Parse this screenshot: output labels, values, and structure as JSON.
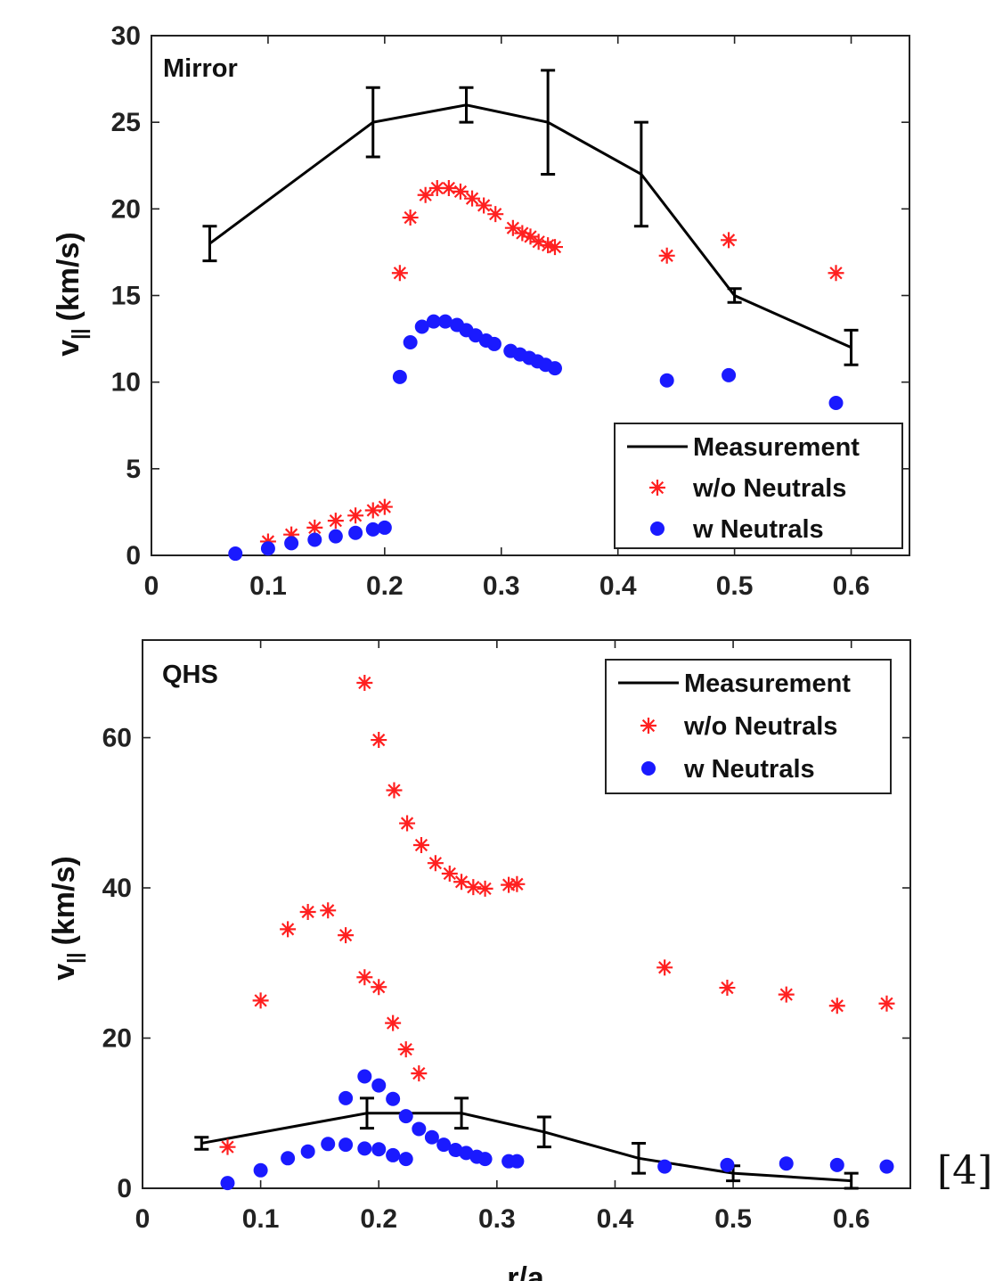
{
  "reference_tag": "[4]",
  "chart_data": [
    {
      "type": "scatter",
      "panel_label": "Mirror",
      "xlim": [
        0,
        0.65
      ],
      "ylim": [
        0,
        30
      ],
      "xticks": [
        0,
        0.1,
        0.2,
        0.3,
        0.4,
        0.5,
        0.6
      ],
      "xtick_labels": [
        "0",
        "0.1",
        "0.2",
        "0.3",
        "0.4",
        "0.5",
        "0.6"
      ],
      "yticks": [
        0,
        5,
        10,
        15,
        20,
        25,
        30
      ],
      "ytick_labels": [
        "0",
        "5",
        "10",
        "15",
        "20",
        "25",
        "30"
      ],
      "ylabel": "v",
      "ylabel_sub": "||",
      "ylabel_unit": "(km/s)",
      "xlabel": "",
      "legend_position": "bottom-right",
      "legend": [
        "Measurement",
        "w/o Neutrals",
        "w Neutrals"
      ],
      "series": [
        {
          "name": "Measurement",
          "style": "line-errorbar",
          "color": "#000000",
          "x": [
            0.05,
            0.19,
            0.27,
            0.34,
            0.42,
            0.5,
            0.6
          ],
          "y": [
            18,
            25,
            26,
            25,
            22,
            15,
            12
          ],
          "err": [
            1,
            2,
            1,
            3,
            3,
            0.4,
            1
          ]
        },
        {
          "name": "w/o Neutrals",
          "style": "star",
          "color": "#ff2020",
          "x": [
            0.1,
            0.12,
            0.14,
            0.158,
            0.175,
            0.19,
            0.2,
            0.213,
            0.222,
            0.235,
            0.245,
            0.255,
            0.265,
            0.275,
            0.285,
            0.295,
            0.31,
            0.318,
            0.325,
            0.332,
            0.34,
            0.346,
            0.442,
            0.495,
            0.587
          ],
          "y": [
            0.8,
            1.2,
            1.6,
            2.0,
            2.3,
            2.6,
            2.8,
            16.3,
            19.5,
            20.8,
            21.2,
            21.2,
            21.0,
            20.6,
            20.2,
            19.7,
            18.9,
            18.6,
            18.4,
            18.1,
            17.9,
            17.8,
            17.3,
            18.2,
            16.3
          ]
        },
        {
          "name": "w Neutrals",
          "style": "dot",
          "color": "#1a1aff",
          "x": [
            0.072,
            0.1,
            0.12,
            0.14,
            0.158,
            0.175,
            0.19,
            0.2,
            0.213,
            0.222,
            0.232,
            0.242,
            0.252,
            0.262,
            0.27,
            0.278,
            0.287,
            0.294,
            0.308,
            0.316,
            0.324,
            0.331,
            0.338,
            0.346,
            0.442,
            0.495,
            0.587
          ],
          "y": [
            0.1,
            0.4,
            0.7,
            0.9,
            1.1,
            1.3,
            1.5,
            1.6,
            10.3,
            12.3,
            13.2,
            13.5,
            13.5,
            13.3,
            13.0,
            12.7,
            12.4,
            12.2,
            11.8,
            11.6,
            11.4,
            11.2,
            11.0,
            10.8,
            10.1,
            10.4,
            8.8
          ]
        }
      ]
    },
    {
      "type": "scatter",
      "panel_label": "QHS",
      "xlim": [
        0,
        0.65
      ],
      "ylim": [
        0,
        73
      ],
      "xticks": [
        0,
        0.1,
        0.2,
        0.3,
        0.4,
        0.5,
        0.6
      ],
      "xtick_labels": [
        "0",
        "0.1",
        "0.2",
        "0.3",
        "0.4",
        "0.5",
        "0.6"
      ],
      "yticks": [
        0,
        20,
        40,
        60
      ],
      "ytick_labels": [
        "0",
        "20",
        "40",
        "60"
      ],
      "ylabel": "v",
      "ylabel_sub": "||",
      "ylabel_unit": "(km/s)",
      "xlabel": "r/a",
      "legend_position": "top-right",
      "legend": [
        "Measurement",
        "w/o Neutrals",
        "w Neutrals"
      ],
      "series": [
        {
          "name": "Measurement",
          "style": "line-errorbar",
          "color": "#000000",
          "x": [
            0.05,
            0.19,
            0.27,
            0.34,
            0.42,
            0.5,
            0.6
          ],
          "y": [
            6,
            10,
            10,
            7.5,
            4,
            2,
            1
          ],
          "err": [
            0.8,
            2,
            2,
            2,
            2,
            1,
            1
          ]
        },
        {
          "name": "w/o Neutrals",
          "style": "star",
          "color": "#ff2020",
          "x": [
            0.072,
            0.1,
            0.123,
            0.14,
            0.157,
            0.172,
            0.188,
            0.2,
            0.212,
            0.223,
            0.234,
            0.188,
            0.2,
            0.213,
            0.224,
            0.236,
            0.248,
            0.26,
            0.27,
            0.28,
            0.29,
            0.31,
            0.317,
            0.442,
            0.495,
            0.545,
            0.588,
            0.63
          ],
          "y": [
            5.5,
            25,
            34.5,
            36.8,
            37,
            33.7,
            28.1,
            26.8,
            22,
            18.5,
            15.3,
            67.3,
            59.7,
            53,
            48.6,
            45.7,
            43.3,
            41.9,
            40.8,
            40.1,
            39.9,
            40.4,
            40.5,
            29.4,
            26.7,
            25.8,
            24.3,
            24.6
          ]
        },
        {
          "name": "w Neutrals",
          "style": "dot",
          "color": "#1a1aff",
          "x": [
            0.072,
            0.1,
            0.123,
            0.14,
            0.157,
            0.172,
            0.188,
            0.2,
            0.212,
            0.223,
            0.172,
            0.188,
            0.2,
            0.212,
            0.223,
            0.234,
            0.245,
            0.255,
            0.265,
            0.274,
            0.283,
            0.29,
            0.31,
            0.317,
            0.442,
            0.495,
            0.545,
            0.588,
            0.63
          ],
          "y": [
            0.7,
            2.4,
            4.0,
            4.9,
            5.9,
            5.8,
            5.3,
            5.2,
            4.4,
            3.9,
            12,
            14.9,
            13.7,
            11.9,
            9.6,
            7.9,
            6.8,
            5.8,
            5.1,
            4.7,
            4.2,
            3.9,
            3.6,
            3.6,
            2.9,
            3.1,
            3.3,
            3.1,
            2.9
          ]
        }
      ]
    }
  ]
}
